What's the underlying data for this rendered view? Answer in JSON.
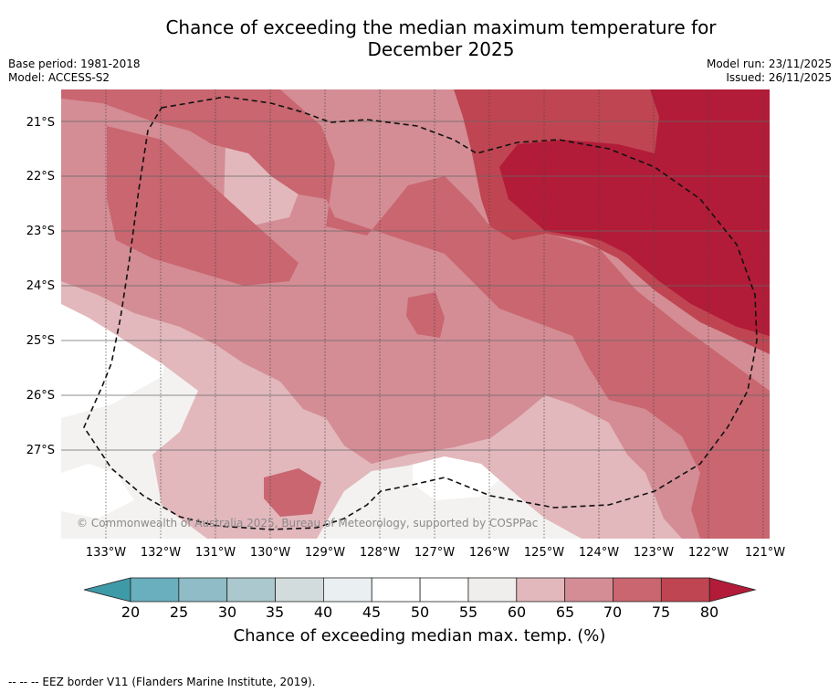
{
  "title_line1": "Chance of exceeding the median maximum temperature for",
  "title_line2": "December 2025",
  "base_period": "Base period: 1981-2018",
  "model": "Model: ACCESS-S2",
  "model_run": "Model run: 23/11/2025",
  "issued": "Issued: 26/11/2025",
  "lat_labels": [
    "21°S",
    "22°S",
    "23°S",
    "24°S",
    "25°S",
    "26°S",
    "27°S"
  ],
  "lon_labels": [
    "133°W",
    "132°W",
    "131°W",
    "130°W",
    "129°W",
    "128°W",
    "127°W",
    "126°W",
    "125°W",
    "124°W",
    "123°W",
    "122°W",
    "121°W"
  ],
  "copyright": "© Commonwealth of Australia 2025, Bureau of Meteorology, supported by COSPPac",
  "colorbar": {
    "ticks": [
      "20",
      "25",
      "30",
      "35",
      "40",
      "45",
      "50",
      "55",
      "60",
      "65",
      "70",
      "75",
      "80"
    ],
    "colors": [
      "#3f9aa8",
      "#6aafbe",
      "#8fbcc6",
      "#aac8cd",
      "#d3dcdd",
      "#eaf0f2",
      "#ffffff",
      "#ffffff",
      "#efeeec",
      "#e2b8bc",
      "#d48d95",
      "#c96670",
      "#c04552",
      "#b21c38"
    ],
    "label": "Chance of exceeding median max. temp. (%)"
  },
  "footnote": "--  --  -- EEZ border V11 (Flanders Marine Institute, 2019)."
}
